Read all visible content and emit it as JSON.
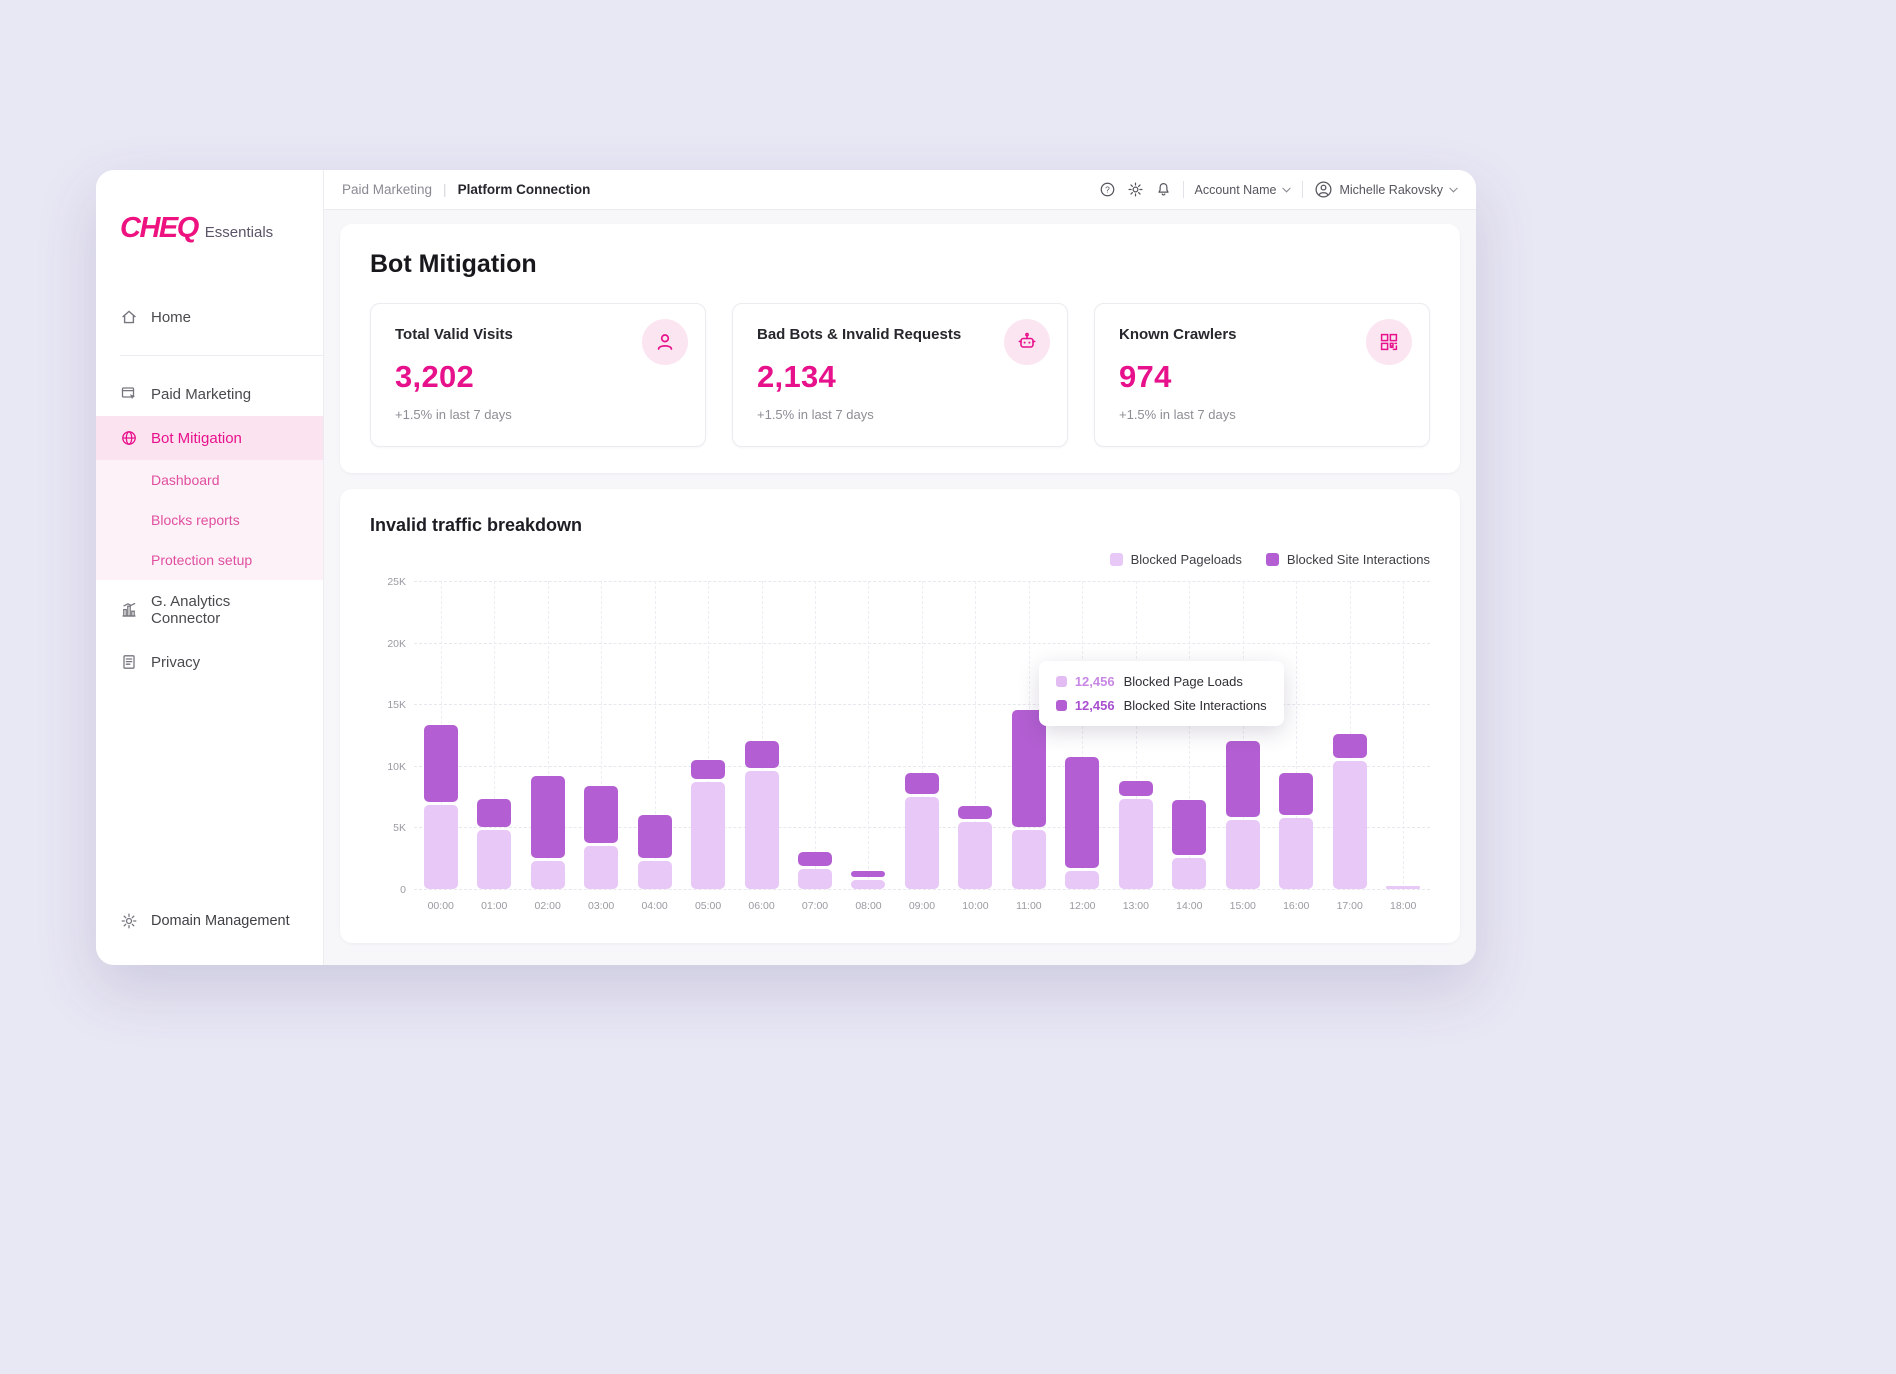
{
  "app": {
    "brand": "CHEQ",
    "brand_suffix": "Essentials"
  },
  "topbar": {
    "breadcrumb": {
      "parent": "Paid Marketing",
      "current": "Platform Connection"
    },
    "account_label": "Account Name",
    "user_name": "Michelle Rakovsky"
  },
  "sidebar": {
    "items": [
      {
        "label": "Home",
        "icon": "home-icon"
      },
      {
        "label": "Paid Marketing",
        "icon": "ad-click-icon"
      },
      {
        "label": "Bot Mitigation",
        "icon": "globe-icon",
        "active": true,
        "children": [
          "Dashboard",
          "Blocks reports",
          "Protection setup"
        ]
      },
      {
        "label": "G. Analytics Connector",
        "icon": "analytics-icon"
      },
      {
        "label": "Privacy",
        "icon": "privacy-doc-icon"
      }
    ],
    "footer": {
      "label": "Domain Management",
      "icon": "gear-icon"
    }
  },
  "page": {
    "title": "Bot Mitigation"
  },
  "stats": [
    {
      "title": "Total Valid Visits",
      "value": "3,202",
      "delta": "+1.5% in last 7 days",
      "icon": "person-icon"
    },
    {
      "title": "Bad Bots & Invalid Requests",
      "value": "2,134",
      "delta": "+1.5% in last 7 days",
      "icon": "bot-icon"
    },
    {
      "title": "Known Crawlers",
      "value": "974",
      "delta": "+1.5% in last 7 days",
      "icon": "crawler-icon"
    }
  ],
  "chart_data": {
    "type": "bar",
    "stacked": true,
    "title": "Invalid traffic breakdown",
    "categories": [
      "00:00",
      "01:00",
      "02:00",
      "03:00",
      "04:00",
      "05:00",
      "06:00",
      "07:00",
      "08:00",
      "09:00",
      "10:00",
      "11:00",
      "12:00",
      "13:00",
      "14:00",
      "15:00",
      "16:00",
      "17:00",
      "18:00"
    ],
    "series": [
      {
        "name": "Blocked Pageloads",
        "color": "#E7C8F6",
        "values": [
          6800,
          4800,
          2300,
          3500,
          2300,
          8700,
          9600,
          1600,
          700,
          7500,
          5400,
          4800,
          1500,
          7300,
          2500,
          5600,
          5800,
          10400,
          250
        ]
      },
      {
        "name": "Blocked Site Interactions",
        "color": "#B35FD3",
        "values": [
          6300,
          2300,
          6600,
          4600,
          3500,
          1500,
          2200,
          1200,
          500,
          1700,
          1100,
          9500,
          9000,
          1200,
          4500,
          6200,
          3400,
          1900,
          0
        ]
      }
    ],
    "xlabel": "",
    "ylabel": "",
    "ylim": [
      0,
      25000
    ],
    "yticks": [
      "25K",
      "20K",
      "15K",
      "10K",
      "5K",
      "0"
    ],
    "grid": true,
    "legend_position": "top-right"
  },
  "tooltip": {
    "rows": [
      {
        "value": "12,456",
        "label": "Blocked Page Loads",
        "swatch_color": "#E3BCF3",
        "value_color": "#C987E5"
      },
      {
        "value": "12,456",
        "label": "Blocked Site Interactions",
        "swatch_color": "#B35FD3",
        "value_color": "#A94FD0"
      }
    ]
  },
  "colors": {
    "accent_pink": "#E8118C",
    "logo_pink": "#ED127F",
    "bar_light": "#E7C8F6",
    "bar_dark": "#B35FD3",
    "active_nav_bg": "#FBE3F0",
    "page_background": "#E8E7F4"
  }
}
